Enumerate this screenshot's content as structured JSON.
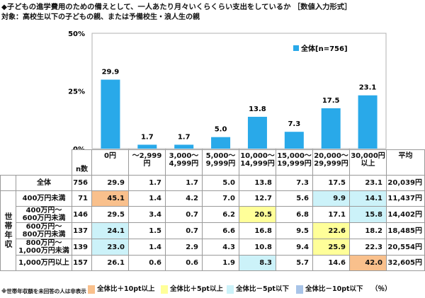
{
  "title": "◆子どもの進学費用のための備えとして、一人あたり月々いくらくらい支出をしているか ［数値入力形式］",
  "subtitle": "対象：高校生以下の子どもの親、または予備校生・浪人生の親",
  "chart_data": {
    "type": "bar",
    "categories": [
      "0円",
      "〜2,999円",
      "3,000〜4,999円",
      "5,000〜9,999円",
      "10,000〜14,999円",
      "15,000〜19,999円",
      "20,000〜29,999円",
      "30,000円以上"
    ],
    "series": [
      {
        "name": "全体[n=756]",
        "values": [
          29.9,
          1.7,
          1.7,
          5.0,
          13.8,
          7.3,
          17.5,
          23.1
        ]
      }
    ],
    "ylim": [
      0,
      50
    ],
    "yticks": [
      "0%",
      "25%",
      "50%"
    ],
    "legend": "top-right",
    "color": "#29a9e9"
  },
  "table": {
    "headers": [
      "0円",
      "〜2,999\n円",
      "3,000〜\n4,999円",
      "5,000〜\n9,999円",
      "10,000〜\n14,999円",
      "15,000〜\n19,999円",
      "20,000〜\n29,999円",
      "30,000円\n以上",
      "平均"
    ],
    "n_header": "n数",
    "group_label": "世帯年収",
    "rows": [
      {
        "label": "全体",
        "n": "756",
        "values": [
          "29.9",
          "1.7",
          "1.7",
          "5.0",
          "13.8",
          "7.3",
          "17.5",
          "23.1"
        ],
        "avg": "20,039円",
        "hl": [
          "",
          "",
          "",
          "",
          "",
          "",
          "",
          ""
        ]
      },
      {
        "label": "400万円未満",
        "n": "71",
        "values": [
          "45.1",
          "1.4",
          "4.2",
          "7.0",
          "12.7",
          "5.6",
          "9.9",
          "14.1"
        ],
        "avg": "11,437円",
        "hl": [
          "or1",
          "",
          "",
          "",
          "",
          "",
          "bl1",
          "bl1"
        ]
      },
      {
        "label": "400万円〜\n600万円未満",
        "n": "146",
        "values": [
          "29.5",
          "3.4",
          "0.7",
          "6.2",
          "20.5",
          "6.8",
          "17.1",
          "15.8"
        ],
        "avg": "14,402円",
        "hl": [
          "",
          "",
          "",
          "",
          "yl1",
          "",
          "",
          "bl1"
        ]
      },
      {
        "label": "600万円〜\n800万円未満",
        "n": "137",
        "values": [
          "24.1",
          "1.5",
          "0.7",
          "6.6",
          "16.8",
          "9.5",
          "22.6",
          "18.2"
        ],
        "avg": "18,485円",
        "hl": [
          "bl1",
          "",
          "",
          "",
          "",
          "",
          "yl1",
          ""
        ]
      },
      {
        "label": "800万円〜\n1,000万円未満",
        "n": "139",
        "values": [
          "23.0",
          "1.4",
          "2.9",
          "4.3",
          "10.8",
          "9.4",
          "25.9",
          "22.3"
        ],
        "avg": "20,554円",
        "hl": [
          "bl1",
          "",
          "",
          "",
          "",
          "",
          "yl1",
          ""
        ]
      },
      {
        "label": "1,000万円以上",
        "n": "157",
        "values": [
          "26.1",
          "0.6",
          "0.6",
          "1.9",
          "8.3",
          "5.7",
          "14.6",
          "42.0"
        ],
        "avg": "32,605円",
        "hl": [
          "",
          "",
          "",
          "",
          "bl1",
          "",
          "",
          "or1"
        ]
      }
    ]
  },
  "footnote": "※世帯年収額を未回答の人は非表示",
  "legend": {
    "or1": "全体比＋10pt以上",
    "yl1": "全体比＋5pt以上",
    "bl1": "全体比－5pt以下",
    "bl2": "全体比－10pt以下",
    "unit": "（％）"
  },
  "colors": {
    "or1": "#f9c08c",
    "yl1": "#ffff99",
    "bl1": "#ccf2f9",
    "bl2": "#a8c4e8"
  }
}
